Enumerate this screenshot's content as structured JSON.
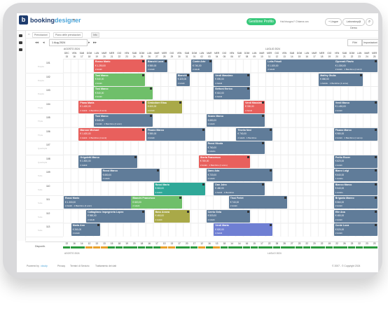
{
  "app": {
    "logo_letter": "b",
    "logo_main": "booking",
    "logo_accent": "designer",
    "cta": "Gestione Profilo",
    "link_help": "Hai bisogno? Chiama ora",
    "pill_lang": "+ Lingue",
    "pill_user": "Laboratory@ Demo",
    "search_icon": "search-icon"
  },
  "breadcrumb": {
    "tabs": [
      "Prenotazioni",
      "Piano delle prenotazioni",
      "Info"
    ]
  },
  "toolbar": {
    "date": "1 Aug 2024",
    "filter_label": "Filtri",
    "settings_label": "Impostazioni"
  },
  "months": [
    {
      "label": "AGOSTO 2024"
    },
    {
      "label": "LUGLIO 2024"
    }
  ],
  "days": [
    {
      "w": "DEC",
      "d": "15"
    },
    {
      "w": "VEN",
      "d": "16"
    },
    {
      "w": "SAB",
      "d": "17"
    },
    {
      "w": "DOM",
      "d": "18"
    },
    {
      "w": "LUN",
      "d": "19"
    },
    {
      "w": "MAR",
      "d": "20"
    },
    {
      "w": "MER",
      "d": "21"
    },
    {
      "w": "GIO",
      "d": "22"
    },
    {
      "w": "VEN",
      "d": "23"
    },
    {
      "w": "SAB",
      "d": "24"
    },
    {
      "w": "DOM",
      "d": "25"
    },
    {
      "w": "LUN",
      "d": "26"
    },
    {
      "w": "MAR",
      "d": "27"
    },
    {
      "w": "MER",
      "d": "28"
    },
    {
      "w": "GIO",
      "d": "29"
    },
    {
      "w": "VEN",
      "d": "30"
    },
    {
      "w": "SAB",
      "d": "31"
    },
    {
      "w": "DOM",
      "d": "01"
    },
    {
      "w": "LUN",
      "d": "02"
    },
    {
      "w": "MAR",
      "d": "03"
    },
    {
      "w": "MER",
      "d": "04"
    },
    {
      "w": "GIO",
      "d": "05"
    },
    {
      "w": "VEN",
      "d": "06"
    },
    {
      "w": "SAB",
      "d": "07"
    },
    {
      "w": "DOM",
      "d": "08"
    },
    {
      "w": "LUN",
      "d": "09"
    },
    {
      "w": "MAR",
      "d": "10"
    },
    {
      "w": "MER",
      "d": "11"
    },
    {
      "w": "GIO",
      "d": "12"
    },
    {
      "w": "VEN",
      "d": "13"
    },
    {
      "w": "SAB",
      "d": "14"
    },
    {
      "w": "DOM",
      "d": "15"
    },
    {
      "w": "LUN",
      "d": "16"
    },
    {
      "w": "MAR",
      "d": "17"
    },
    {
      "w": "MER",
      "d": "18"
    },
    {
      "w": "GIO",
      "d": "19"
    },
    {
      "w": "VEN",
      "d": "20"
    },
    {
      "w": "SAB",
      "d": "21"
    },
    {
      "w": "DOM",
      "d": "22"
    },
    {
      "w": "LUN",
      "d": "23"
    },
    {
      "w": "MAR",
      "d": "24"
    },
    {
      "w": "MER",
      "d": "25"
    }
  ],
  "rooms": [
    {
      "num": "101",
      "type": "Doppia"
    },
    {
      "num": "102",
      "type": "Doppia"
    },
    {
      "num": "103",
      "type": "Doppia"
    },
    {
      "num": "104",
      "type": "Tripla"
    },
    {
      "num": "105",
      "type": "Tripla"
    },
    {
      "num": "106",
      "type": "Tripla"
    },
    {
      "num": "107",
      "type": "Quadrupla"
    },
    {
      "num": "108",
      "type": "Quadrupla"
    },
    {
      "num": "109",
      "type": "Suite"
    },
    {
      "num": "110",
      "type": "Suite"
    },
    {
      "num": "111",
      "type": "Suite"
    },
    {
      "num": "112",
      "type": "Suite"
    },
    {
      "num": "113",
      "type": "Suite"
    }
  ],
  "bookings": [
    {
      "row": 0,
      "start": 4,
      "len": 7,
      "color": "#e8605d",
      "name": "Rosso Mario",
      "price": "€ 1.250,00",
      "guests": "2 Adulti"
    },
    {
      "row": 0,
      "start": 11,
      "len": 3,
      "color": "#607c99",
      "name": "Bianchi Luca",
      "price": "€ 980,00",
      "guests": "2 Adulti"
    },
    {
      "row": 0,
      "start": 17,
      "len": 3,
      "color": "#607c99",
      "name": "Conte Arte",
      "price": "€ 740,00",
      "guests": "2 Adulti"
    },
    {
      "row": 0,
      "start": 27,
      "len": 11,
      "color": "#607c99",
      "name": "Leila Frisoli",
      "price": "€ 1.100,00",
      "guests": "2 Adulti"
    },
    {
      "row": 0,
      "start": 36,
      "len": 6,
      "color": "#607c99",
      "name": "Ciprerati Flavio",
      "price": "€ 1.300,00",
      "guests": "2 Adulti · 1 Bambino (4 anni)"
    },
    {
      "row": 1,
      "start": 4,
      "len": 7,
      "color": "#6fbf6a",
      "name": "Tosi Marco",
      "price": "€ 540,00",
      "guests": "2 Adulti"
    },
    {
      "row": 1,
      "start": 15,
      "len": 2,
      "color": "#607c99",
      "name": "Bianchi R",
      "price": "€ 320,00",
      "guests": "2 Adulti"
    },
    {
      "row": 1,
      "start": 20,
      "len": 5,
      "color": "#607c99",
      "name": "Verdi Massimo",
      "price": "€ 690,00",
      "guests": "2 Adulti"
    },
    {
      "row": 1,
      "start": 34,
      "len": 6,
      "color": "#607c99",
      "name": "Malfey Giulia",
      "price": "€ 860,00",
      "guests": "1 Adulto · 1 Bambino (1 anno)"
    },
    {
      "row": 2,
      "start": 4,
      "len": 8,
      "color": "#6fbf6a",
      "name": "Tosi Marco",
      "price": "€ 540,00",
      "guests": "2 Adulti"
    },
    {
      "row": 2,
      "start": 20,
      "len": 5,
      "color": "#607c99",
      "name": "Bettoni Enrico",
      "price": "€ 610,00",
      "guests": "2 Adulti"
    },
    {
      "row": 3,
      "start": 2,
      "len": 9,
      "color": "#e8605d",
      "name": "Piana Maria",
      "price": "€ 1.420,00",
      "guests": "2 Adulti · 1 Bambino (6 anni)"
    },
    {
      "row": 3,
      "start": 11,
      "len": 5,
      "color": "#a9a948",
      "name": "Cesiodore Elisa",
      "price": "€ 600,00",
      "guests": "2 Adulti"
    },
    {
      "row": 3,
      "start": 24,
      "len": 3,
      "color": "#e8605d",
      "name": "Verdi Massimo",
      "price": "€ 330,00",
      "guests": "2 Adulti"
    },
    {
      "row": 3,
      "start": 36,
      "len": 6,
      "color": "#607c99",
      "name": "Verdi Marco",
      "price": "€ 1.450,00",
      "guests": "2 Adulti"
    },
    {
      "row": 4,
      "start": 4,
      "len": 8,
      "color": "#607c99",
      "name": "Tosi Marco",
      "price": "€ 540,00",
      "guests": "2 Adulti · 1 Bambino (4 anni)"
    },
    {
      "row": 4,
      "start": 19,
      "len": 8,
      "color": "#607c99",
      "name": "Scano Marco",
      "price": "€ 650,00",
      "guests": "2 Adulti"
    },
    {
      "row": 5,
      "start": 2,
      "len": 9,
      "color": "#e8605d",
      "name": "Marcon Michael",
      "price": "€ 1.420,00",
      "guests": "2 Adulti · 1 Bambino (4 anni)"
    },
    {
      "row": 5,
      "start": 11,
      "len": 8,
      "color": "#607c99",
      "name": "Fisano Marco",
      "price": "€ 980,00",
      "guests": "2 Adulti"
    },
    {
      "row": 5,
      "start": 23,
      "len": 5,
      "color": "#607c99",
      "name": "Tinello Ned",
      "price": "€ 740,00",
      "guests": "2 Adulti · 1 Bambino"
    },
    {
      "row": 5,
      "start": 36,
      "len": 6,
      "color": "#607c99",
      "name": "Fisano Marco",
      "price": "€ 980,00",
      "guests": "2 Adulti · 1 Bambino (1 anno)"
    },
    {
      "row": 6,
      "start": 19,
      "len": 8,
      "color": "#607c99",
      "name": "Rossi Nicola",
      "price": "€ 760,00",
      "guests": "1 Adulto"
    },
    {
      "row": 7,
      "start": 2,
      "len": 8,
      "color": "#607c99",
      "name": "Grigoletti Marco",
      "price": "€ 1.500,00",
      "guests": "2 Adulti"
    },
    {
      "row": 7,
      "start": 18,
      "len": 7,
      "color": "#e8605d",
      "name": "Sterla Francesco",
      "price": "€ 780,00",
      "guests": "2 Adulti · 1 Bambino (1 anno)"
    },
    {
      "row": 7,
      "start": 36,
      "len": 6,
      "color": "#607c99",
      "name": "Perito Rover",
      "price": "€ 820,00",
      "guests": "2 Adulti"
    },
    {
      "row": 8,
      "start": 5,
      "len": 8,
      "color": "#607c99",
      "name": "Rossi Marco",
      "price": "€ 650,00",
      "guests": "2 Adulti"
    },
    {
      "row": 8,
      "start": 19,
      "len": 9,
      "color": "#607c99",
      "name": "Danu Ada",
      "price": "€ 720,00",
      "guests": "2 Adulti"
    },
    {
      "row": 8,
      "start": 36,
      "len": 6,
      "color": "#607c99",
      "name": "Blano Luigi",
      "price": "€ 640,00",
      "guests": "1 Adulto"
    },
    {
      "row": 9,
      "start": 12,
      "len": 7,
      "color": "#2fa898",
      "name": "Rossi Mario",
      "price": "€ 560,00",
      "guests": "2 Adulti"
    },
    {
      "row": 9,
      "start": 20,
      "len": 7,
      "color": "#607c99",
      "name": "Dan John",
      "price": "€ 480,00",
      "guests": "2 Adulti · 1 Bambino"
    },
    {
      "row": 9,
      "start": 36,
      "len": 6,
      "color": "#607c99",
      "name": "Bianco Marco",
      "price": "€ 540,00",
      "guests": "1 Adulto"
    },
    {
      "row": 10,
      "start": 0,
      "len": 12,
      "color": "#607c99",
      "name": "Rossi Mario",
      "price": "€ 1.300,00",
      "guests": "2 Adulti · 1 Bambino (4 anni)"
    },
    {
      "row": 10,
      "start": 9,
      "len": 7,
      "color": "#6fbf6a",
      "name": "Bianchi Francesco",
      "price": "€ 820,00",
      "guests": "2 Adulti"
    },
    {
      "row": 10,
      "start": 22,
      "len": 8,
      "color": "#607c99",
      "name": "Tissi Ferlet",
      "price": "€ 740,00",
      "guests": "2 Adulti"
    },
    {
      "row": 10,
      "start": 36,
      "len": 6,
      "color": "#607c99",
      "name": "Brigania Manno",
      "price": "€ 560,00",
      "guests": "2 Adulti"
    },
    {
      "row": 11,
      "start": 3,
      "len": 8,
      "color": "#607c99",
      "name": "Cattagliano Impegneria Lopez",
      "price": "€ 560,00",
      "guests": "2 Adulti"
    },
    {
      "row": 11,
      "start": 12,
      "len": 5,
      "color": "#a9a948",
      "name": "Bass Annea",
      "price": "€ 460,00",
      "guests": "2 Adulti"
    },
    {
      "row": 11,
      "start": 19,
      "len": 6,
      "color": "#607c99",
      "name": "Cerrio Gela",
      "price": "€ 520,00",
      "guests": "2 Adulti"
    },
    {
      "row": 11,
      "start": 36,
      "len": 6,
      "color": "#607c99",
      "name": "Elle Ana",
      "price": "€ 480,00",
      "guests": "2 Adulti"
    },
    {
      "row": 12,
      "start": 1,
      "len": 4,
      "color": "#607c99",
      "name": "Marta Ann",
      "price": "€ 260,00",
      "guests": "2 Adulti"
    },
    {
      "row": 12,
      "start": 20,
      "len": 8,
      "color": "#6f7fd3",
      "name": "Verdi Marta",
      "price": "€ 820,00",
      "guests": "2 Adulti"
    },
    {
      "row": 12,
      "start": 36,
      "len": 6,
      "color": "#607c99",
      "name": "Conte Luca",
      "price": "€ 520,00",
      "guests": "2 Adulti"
    }
  ],
  "occupancy": {
    "label": "Disponib.",
    "values": [
      "22",
      "16",
      "14",
      "12",
      "13",
      "13",
      "15",
      "18",
      "19",
      "20",
      "18",
      "16",
      "17",
      "13",
      "13",
      "17",
      "20",
      "17",
      "12",
      "16",
      "13",
      "18",
      "14",
      "14",
      "16",
      "15",
      "17",
      "22",
      "28",
      "28",
      "27",
      "23",
      "22",
      "20",
      "22",
      "19",
      "22",
      "26",
      "23",
      "22",
      "23",
      "23"
    ],
    "colors": {
      "ok": "#2a9a3c",
      "warn": "#e8a12c"
    }
  },
  "footer": {
    "powered": "Powered by",
    "powered_brand": "cloudy",
    "links": [
      "Privacy",
      "Termini di Servizio",
      "Trattamento dei dati"
    ],
    "copyright": "© 2007 - © Copyright 2024"
  }
}
